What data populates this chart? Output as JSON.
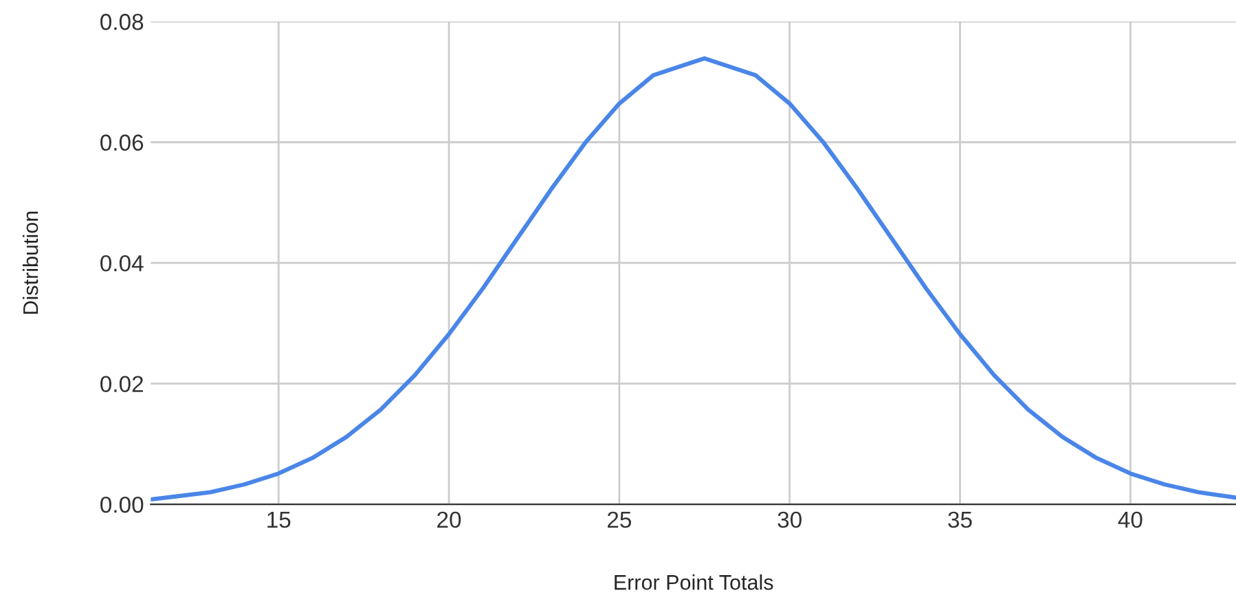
{
  "chart_data": {
    "type": "line",
    "xlabel": "Error Point Totals",
    "ylabel": "Distribution",
    "x": [
      11.25,
      13,
      14,
      15,
      16,
      17,
      18,
      19,
      20,
      21,
      22,
      23,
      24,
      25,
      26,
      27.5,
      29,
      30,
      31,
      32,
      33,
      34,
      35,
      36,
      37,
      38,
      39,
      40,
      41,
      42,
      43.1
    ],
    "series": [
      {
        "color": "#4a86e8",
        "values": [
          0.0008,
          0.002,
          0.0033,
          0.0051,
          0.0077,
          0.0112,
          0.0157,
          0.0214,
          0.0282,
          0.0358,
          0.044,
          0.0522,
          0.0599,
          0.0664,
          0.0711,
          0.0739,
          0.0711,
          0.0664,
          0.0599,
          0.0522,
          0.044,
          0.0358,
          0.0282,
          0.0214,
          0.0157,
          0.0112,
          0.0077,
          0.0051,
          0.0033,
          0.002,
          0.0011
        ]
      }
    ],
    "xlim": [
      11.25,
      43.1
    ],
    "ylim": [
      0,
      0.08
    ],
    "xticks": [
      15,
      20,
      25,
      30,
      35,
      40
    ],
    "yticks": [
      {
        "value": 0,
        "label": "0.00"
      },
      {
        "value": 0.02,
        "label": "0.02"
      },
      {
        "value": 0.04,
        "label": "0.04"
      },
      {
        "value": 0.06,
        "label": "0.06"
      },
      {
        "value": 0.08,
        "label": "0.08"
      }
    ],
    "grid": true,
    "marker": "none",
    "line_style": "solid"
  }
}
